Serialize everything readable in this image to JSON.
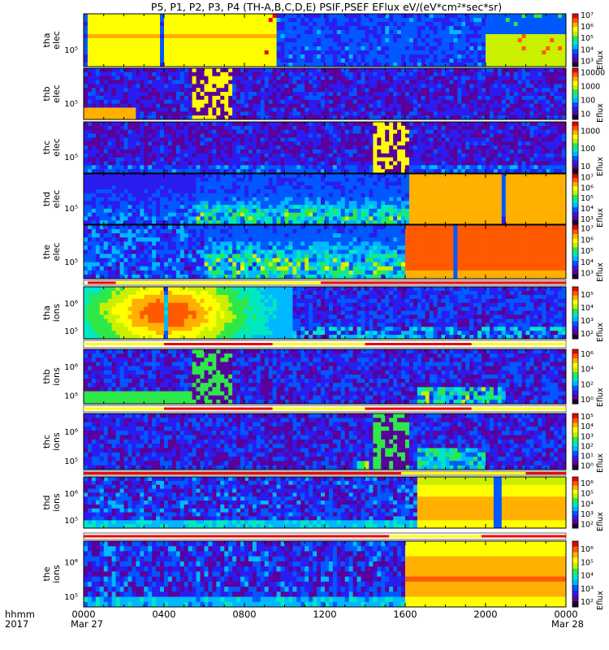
{
  "chart_data": {
    "type": "heatmap",
    "title": "P5, P1, P2, P3, P4 (TH-A,B,C,D,E) PSIF,PSEF EFlux eV/(eV*cm²*sec*sr)",
    "x_axis": {
      "ticks": [
        "0000",
        "0400",
        "0800",
        "1200",
        "1600",
        "2000",
        "0000"
      ],
      "hours": [
        0,
        4,
        8,
        12,
        16,
        20,
        24
      ],
      "range_hours": [
        0,
        24
      ],
      "date_labels": [
        "Mar 27",
        "Mar 28"
      ],
      "corner_labels": [
        "hhmm",
        "2017"
      ]
    },
    "colorbar_label": "Eflux",
    "panels": [
      {
        "probe": "tha",
        "species": "elec",
        "ytick": "10⁵",
        "ylog_range": [
          4.2,
          6.7
        ],
        "cbar_ticks": [
          "10⁷",
          "10⁶",
          "10⁵",
          "10⁴",
          "10³"
        ],
        "cbar_min": 2.5,
        "cbar_max": 7.1,
        "flag_bar_after": false
      },
      {
        "probe": "thb",
        "species": "elec",
        "ytick": "10⁵",
        "ylog_range": [
          4.2,
          6.7
        ],
        "cbar_ticks": [
          "10000",
          "1000",
          "100",
          "10"
        ],
        "cbar_min": 0.6,
        "cbar_max": 4.3,
        "flag_bar_after": false
      },
      {
        "probe": "thc",
        "species": "elec",
        "ytick": "10⁵",
        "ylog_range": [
          4.2,
          6.7
        ],
        "cbar_ticks": [
          "1000",
          "100",
          "10"
        ],
        "cbar_min": 0.6,
        "cbar_max": 3.5,
        "flag_bar_after": false
      },
      {
        "probe": "thd",
        "species": "elec",
        "ytick": "10⁵",
        "ylog_range": [
          4.2,
          6.7
        ],
        "cbar_ticks": [
          "10⁷",
          "10⁶",
          "10⁵",
          "10⁴",
          "10³"
        ],
        "cbar_min": 2.5,
        "cbar_max": 7.3,
        "flag_bar_after": false
      },
      {
        "probe": "the",
        "species": "elec",
        "ytick": "10⁵",
        "ylog_range": [
          4.2,
          6.7
        ],
        "cbar_ticks": [
          "10⁷",
          "10⁶",
          "10⁵",
          "10⁴",
          "10³"
        ],
        "cbar_min": 2.5,
        "cbar_max": 7.3,
        "flag_bar_after": true
      },
      {
        "probe": "tha",
        "species": "ions",
        "ytick": "10⁵",
        "ytick2": "10⁶",
        "ylog_range": [
          4.7,
          6.6
        ],
        "cbar_ticks": [
          "10⁵",
          "10⁴",
          "10³",
          "10²"
        ],
        "cbar_min": 1.6,
        "cbar_max": 5.6,
        "flag_bar_after": true
      },
      {
        "probe": "thb",
        "species": "ions",
        "ytick": "10⁵",
        "ytick2": "10⁶",
        "ylog_range": [
          4.7,
          6.6
        ],
        "cbar_ticks": [
          "10⁶",
          "10⁴",
          "10²",
          "10⁰"
        ],
        "cbar_min": -0.6,
        "cbar_max": 6.6,
        "flag_bar_after": true
      },
      {
        "probe": "thc",
        "species": "ions",
        "ytick": "10⁵",
        "ytick2": "10⁶",
        "ylog_range": [
          4.7,
          6.6
        ],
        "cbar_ticks": [
          "10⁵",
          "10⁴",
          "10³",
          "10²",
          "10¹",
          "10⁰"
        ],
        "cbar_min": -0.4,
        "cbar_max": 5.3,
        "flag_bar_after": true
      },
      {
        "probe": "thd",
        "species": "ions",
        "ytick": "10⁵",
        "ytick2": "10⁶",
        "ylog_range": [
          4.7,
          6.6
        ],
        "cbar_ticks": [
          "10⁶",
          "10⁵",
          "10⁴",
          "10³",
          "10²"
        ],
        "cbar_min": 1.6,
        "cbar_max": 6.6,
        "flag_bar_after": true
      },
      {
        "probe": "the",
        "species": "ions",
        "ytick": "10⁵",
        "ytick2": "10⁶",
        "ylog_range": [
          4.7,
          6.6
        ],
        "cbar_ticks": [
          "10⁶",
          "10⁵",
          "10⁴",
          "10³",
          "10²"
        ],
        "cbar_min": 1.6,
        "cbar_max": 6.6,
        "flag_bar_after": false
      }
    ],
    "flag_bars": [
      {
        "after_panel": 4,
        "red_hours": [
          [
            0.2,
            1.6
          ],
          [
            11.8,
            24
          ]
        ],
        "yellow_hours": [
          [
            1.6,
            11.8
          ]
        ]
      },
      {
        "after_panel": 5,
        "red_hours": [
          [
            4.0,
            9.4
          ],
          [
            14.0,
            19.3
          ]
        ],
        "yellow_hours": [
          [
            0,
            4.0
          ],
          [
            9.4,
            14.0
          ],
          [
            19.3,
            24
          ]
        ]
      },
      {
        "after_panel": 6,
        "red_hours": [
          [
            4.0,
            9.4
          ],
          [
            14.0,
            19.3
          ]
        ],
        "yellow_hours": [
          [
            0,
            4.0
          ],
          [
            9.4,
            14.0
          ],
          [
            19.3,
            24
          ]
        ]
      },
      {
        "after_panel": 7,
        "red_hours": [
          [
            0,
            15.8
          ],
          [
            22.0,
            24
          ]
        ],
        "yellow_hours": [
          [
            15.8,
            22.0
          ]
        ]
      },
      {
        "after_panel": 8,
        "red_hours": [
          [
            0,
            15.2
          ],
          [
            19.8,
            24
          ]
        ],
        "yellow_hours": [
          [
            15.2,
            19.8
          ]
        ]
      }
    ],
    "colormap": [
      "#1b0030",
      "#5a009c",
      "#2b1cf0",
      "#0058ff",
      "#00b8ff",
      "#00e8c0",
      "#2ee84a",
      "#c8f000",
      "#ffff00",
      "#ffb000",
      "#ff5a00",
      "#ee0000"
    ]
  }
}
